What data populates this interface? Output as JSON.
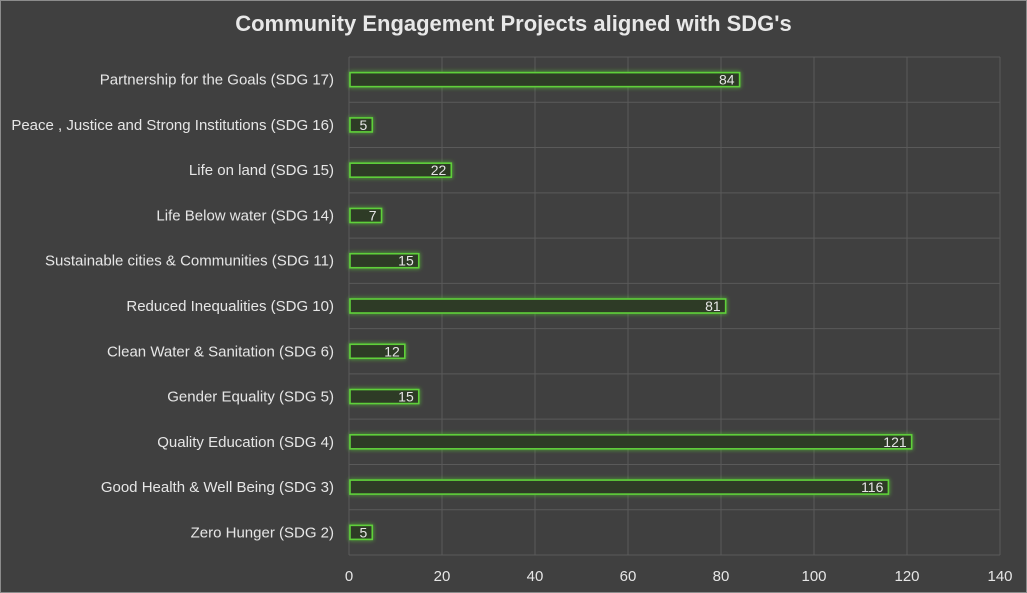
{
  "chart_data": {
    "type": "bar",
    "orientation": "horizontal",
    "title": "Community Engagement Projects aligned with SDG's",
    "categories": [
      "Partnership for the Goals (SDG 17)",
      "Peace , Justice and Strong Institutions (SDG 16)",
      "Life on land (SDG 15)",
      "Life Below water (SDG 14)",
      "Sustainable cities & Communities (SDG 11)",
      "Reduced Inequalities (SDG 10)",
      "Clean Water & Sanitation (SDG 6)",
      "Gender Equality (SDG 5)",
      "Quality Education (SDG 4)",
      "Good Health & Well Being (SDG 3)",
      "Zero Hunger (SDG 2)"
    ],
    "values": [
      84,
      5,
      22,
      7,
      15,
      81,
      12,
      15,
      121,
      116,
      5
    ],
    "xlim": [
      0,
      140
    ],
    "xticks": [
      0,
      20,
      40,
      60,
      80,
      100,
      120,
      140
    ],
    "xlabel": "",
    "ylabel": "",
    "grid": true,
    "legend": "none",
    "data_labels": true,
    "colors": {
      "background": "#404040",
      "bar_fill": "#2e3a26",
      "bar_outline": "#5fd03a",
      "grid": "#5a5a5a",
      "text": "#e6e6e6"
    }
  }
}
